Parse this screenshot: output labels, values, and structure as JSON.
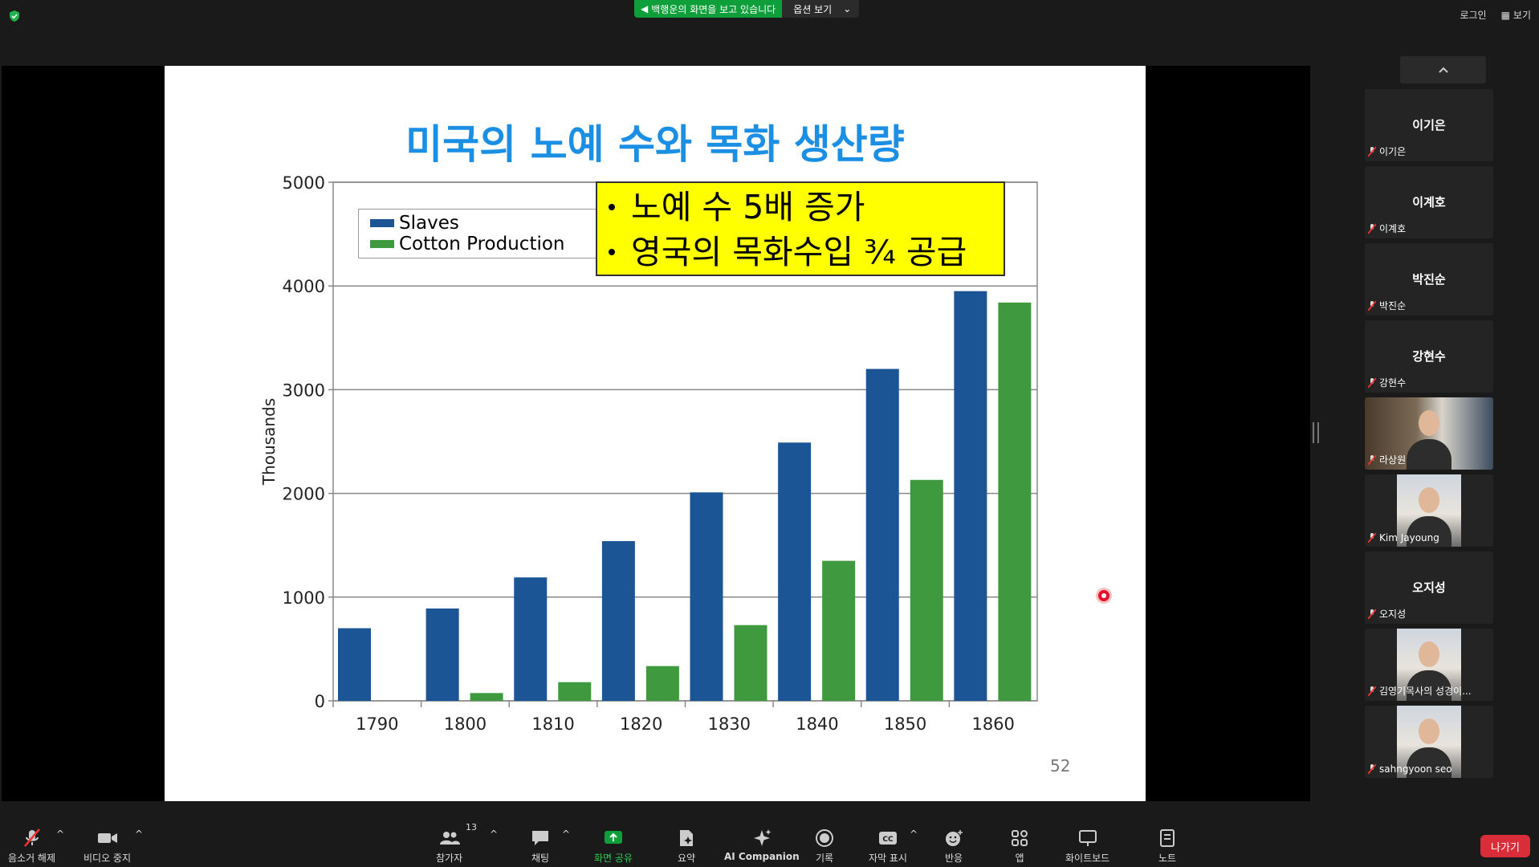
{
  "banner": {
    "viewing_text": "백행운의 화면을 보고 있습니다",
    "options_label": "옵션 보기"
  },
  "top_right": {
    "login": "로그인",
    "view": "보기"
  },
  "slide": {
    "title": "미국의 노예 수와  목화 생산량",
    "callout": [
      "노예 수 5배 증가",
      "영국의 목화수입 ¾  공급"
    ],
    "page_number": "52"
  },
  "chart_data": {
    "type": "bar",
    "categories": [
      "1790",
      "1800",
      "1810",
      "1820",
      "1830",
      "1840",
      "1850",
      "1860"
    ],
    "series": [
      {
        "name": "Slaves",
        "values": [
          700,
          890,
          1190,
          1540,
          2010,
          2490,
          3200,
          3950
        ]
      },
      {
        "name": "Cotton Production",
        "values": [
          0,
          75,
          180,
          335,
          730,
          1350,
          2130,
          3840
        ]
      }
    ],
    "ylabel": "Thousands",
    "ylim": [
      0,
      5000
    ],
    "yticks": [
      "0",
      "1000",
      "2000",
      "3000",
      "4000",
      "5000"
    ],
    "colors": {
      "Slaves": "#1b5596",
      "Cotton Production": "#3f9a3f"
    },
    "grid": "horizontal",
    "legend_position": "top-left"
  },
  "participants": [
    {
      "name": "이기은",
      "video": false
    },
    {
      "name": "이계호",
      "video": false
    },
    {
      "name": "박진순",
      "video": false
    },
    {
      "name": "강현수",
      "video": false
    },
    {
      "name": "라상원",
      "video": true
    },
    {
      "name": "Kim Jayoung",
      "video": true
    },
    {
      "name": "오지성",
      "video": false
    },
    {
      "name": "김영기목사의 성경이...",
      "video": true
    },
    {
      "name": "sahngyoon seo",
      "video": true
    }
  ],
  "toolbar": {
    "mute": "음소거 해제",
    "video": "비디오 중지",
    "participants": "참가자",
    "participants_count": "13",
    "chat": "채팅",
    "share": "화면 공유",
    "summary": "요약",
    "ai": "AI Companion",
    "record": "기록",
    "captions": "자막 표시",
    "reactions": "반응",
    "apps": "앱",
    "whiteboard": "화이트보드",
    "notes": "노트",
    "leave": "나가기"
  },
  "accent": {
    "share_green": "#0e9f3b",
    "leave_red": "#d92d3a",
    "title_blue": "#1a8fe3",
    "callout_yellow": "#ffff00"
  }
}
